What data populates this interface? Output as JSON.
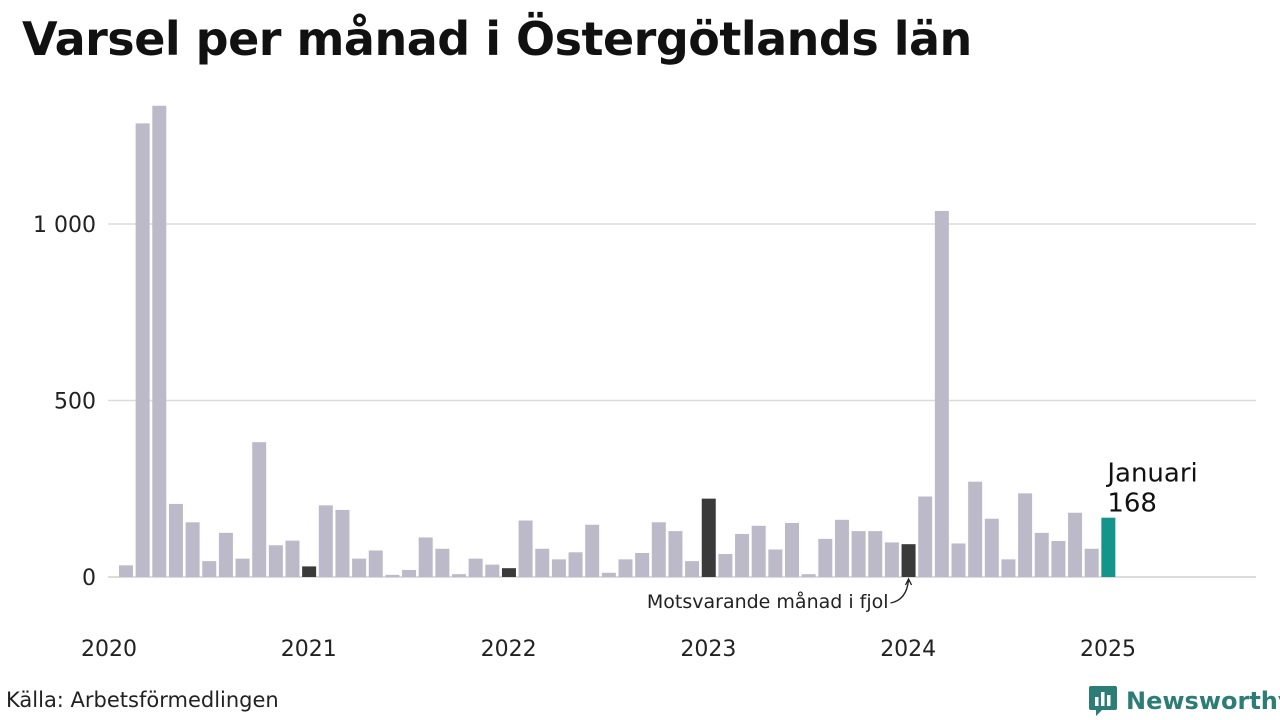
{
  "title": "Varsel per månad i Östergötlands län",
  "source": "Källa: Arbetsförmedlingen",
  "brand": {
    "name": "Newsworthy",
    "icon": "bar-chart-logo-icon"
  },
  "colors": {
    "default": "#bcbac9",
    "previous_year": "#3a3a3a",
    "current": "#14958b",
    "grid": "#dcdcdc",
    "brand": "#2c7d75"
  },
  "chart_data": {
    "type": "bar",
    "title": "Varsel per månad i Östergötlands län",
    "xlabel": "",
    "ylabel": "",
    "ylim": [
      0,
      1350
    ],
    "yticks": [
      0,
      500,
      1000
    ],
    "ytick_labels": [
      "0",
      "500",
      "1 000"
    ],
    "x_start": "2020-01",
    "xtick_labels": [
      "2020",
      "2021",
      "2022",
      "2023",
      "2024",
      "2025"
    ],
    "grid": true,
    "values": [
      33,
      1285,
      1335,
      207,
      155,
      45,
      125,
      52,
      382,
      90,
      103,
      30,
      203,
      190,
      52,
      75,
      6,
      20,
      112,
      80,
      8,
      52,
      35,
      25,
      160,
      80,
      50,
      70,
      148,
      12,
      50,
      68,
      155,
      130,
      45,
      222,
      65,
      122,
      145,
      78,
      153,
      8,
      108,
      162,
      130,
      130,
      98,
      93,
      228,
      1037,
      95,
      270,
      165,
      50,
      237,
      125,
      102,
      182,
      80,
      168
    ],
    "highlights": {
      "previous_year_indices": [
        11,
        23,
        35,
        47
      ],
      "current_index": 59
    },
    "annotations": {
      "current_month": "Januari",
      "current_value": "168",
      "previous_year_note": "Motsvarande månad i fjol"
    }
  }
}
